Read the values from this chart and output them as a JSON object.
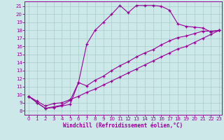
{
  "xlabel": "Windchill (Refroidissement éolien,°C)",
  "bg_color": "#cce8e8",
  "line_color": "#990099",
  "grid_color": "#aacccc",
  "xmin": -0.5,
  "xmax": 23.3,
  "ymin": 7.5,
  "ymax": 21.6,
  "line1_x": [
    0,
    1,
    2,
    3,
    4,
    5,
    6,
    7,
    8,
    9,
    10,
    11,
    12,
    13,
    14,
    15,
    16,
    17,
    18,
    19,
    20,
    21,
    22,
    23
  ],
  "line1_y": [
    9.8,
    9.0,
    8.3,
    8.4,
    8.6,
    8.8,
    11.5,
    16.3,
    18.0,
    19.0,
    20.0,
    21.1,
    20.2,
    21.1,
    21.1,
    21.1,
    21.0,
    20.5,
    18.8,
    18.5,
    18.4,
    18.3,
    17.8,
    18.0
  ],
  "line2_x": [
    0,
    1,
    2,
    3,
    4,
    5,
    6,
    7,
    8,
    9,
    10,
    11,
    12,
    13,
    14,
    15,
    16,
    17,
    18,
    19,
    20,
    21,
    22,
    23
  ],
  "line2_y": [
    9.8,
    9.0,
    8.3,
    8.5,
    8.7,
    9.3,
    11.5,
    11.1,
    11.8,
    12.3,
    13.0,
    13.6,
    14.1,
    14.7,
    15.2,
    15.6,
    16.2,
    16.7,
    17.1,
    17.3,
    17.6,
    17.9,
    17.9,
    18.0
  ],
  "line3_x": [
    0,
    1,
    2,
    3,
    4,
    5,
    6,
    7,
    8,
    9,
    10,
    11,
    12,
    13,
    14,
    15,
    16,
    17,
    18,
    19,
    20,
    21,
    22,
    23
  ],
  "line3_y": [
    9.8,
    9.2,
    8.6,
    8.9,
    9.0,
    9.4,
    9.8,
    10.3,
    10.7,
    11.2,
    11.7,
    12.2,
    12.7,
    13.2,
    13.7,
    14.2,
    14.7,
    15.2,
    15.7,
    16.0,
    16.5,
    17.0,
    17.5,
    18.0
  ],
  "yticks": [
    8,
    9,
    10,
    11,
    12,
    13,
    14,
    15,
    16,
    17,
    18,
    19,
    20,
    21
  ],
  "xticks": [
    0,
    1,
    2,
    3,
    4,
    5,
    6,
    7,
    8,
    9,
    10,
    11,
    12,
    13,
    14,
    15,
    16,
    17,
    18,
    19,
    20,
    21,
    22,
    23
  ],
  "tick_fontsize": 5,
  "xlabel_fontsize": 5.5
}
